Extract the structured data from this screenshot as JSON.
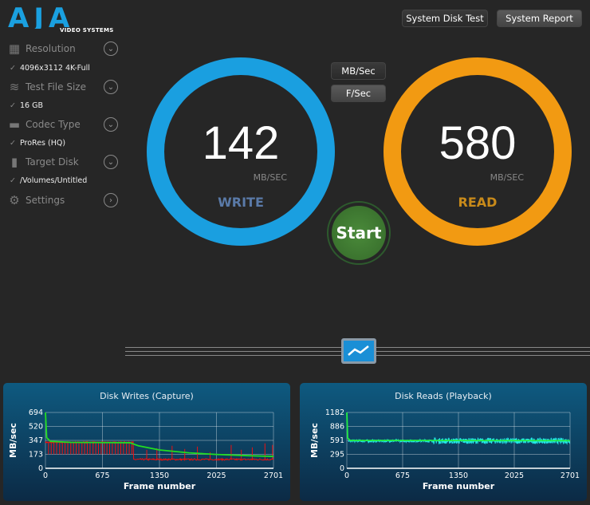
{
  "logo": {
    "text": "AJA",
    "sub": "VIDEO SYSTEMS",
    "color": "#1aa0e0"
  },
  "sidebar": {
    "items": [
      {
        "label": "Resolution",
        "value": "4096x3112 4K-Full",
        "icon": "chip-icon"
      },
      {
        "label": "Test File Size",
        "value": "16 GB",
        "icon": "stack-icon"
      },
      {
        "label": "Codec Type",
        "value": "ProRes (HQ)",
        "icon": "film-icon"
      },
      {
        "label": "Target Disk",
        "value": "/Volumes/Untitled",
        "icon": "disk-icon"
      },
      {
        "label": "Settings",
        "icon": "gear-icon"
      }
    ],
    "check": "✓"
  },
  "toolbar": {
    "system_disk_test": "System Disk Test",
    "system_report": "System Report"
  },
  "units": {
    "mbsec": "MB/Sec",
    "fsec": "F/Sec",
    "selected": "F/Sec"
  },
  "write": {
    "value": "142",
    "unit": "MB/SEC",
    "label": "WRITE",
    "color": "#1a9fe0"
  },
  "read": {
    "value": "580",
    "unit": "MB/SEC",
    "label": "READ",
    "color": "#f29a12"
  },
  "start_label": "Start",
  "chart_data": [
    {
      "type": "line",
      "title": "Disk Writes (Capture)",
      "xlabel": "Frame number",
      "ylabel": "MB/sec",
      "xticks": [
        "0",
        "675",
        "1350",
        "2025",
        "2701"
      ],
      "yticks": [
        "0",
        "173",
        "347",
        "520",
        "694"
      ],
      "xlim": [
        0,
        2701
      ],
      "ylim": [
        0,
        694
      ],
      "grid": true,
      "series": [
        {
          "color": "#22dd22",
          "points": [
            [
              0,
              694
            ],
            [
              15,
              380
            ],
            [
              60,
              335
            ],
            [
              300,
              322
            ],
            [
              1000,
              318
            ],
            [
              1100,
              280
            ],
            [
              1350,
              228
            ],
            [
              1700,
              192
            ],
            [
              2025,
              172
            ],
            [
              2400,
              157
            ],
            [
              2701,
              148
            ]
          ]
        },
        {
          "color": "#ee1111",
          "baseline": [
            [
              0,
              320
            ],
            [
              1040,
              320
            ],
            [
              1045,
              108
            ],
            [
              2701,
              108
            ]
          ],
          "dips_before": 173,
          "dip_interval": 33,
          "spikes_after": [
            [
              1200,
              230
            ],
            [
              1320,
              250
            ],
            [
              1500,
              280
            ],
            [
              1650,
              240
            ],
            [
              1800,
              270
            ],
            [
              1950,
              200
            ],
            [
              2200,
              290
            ],
            [
              2320,
              230
            ],
            [
              2450,
              260
            ],
            [
              2600,
              310
            ],
            [
              2690,
              290
            ]
          ]
        }
      ]
    },
    {
      "type": "line",
      "title": "Disk Reads (Playback)",
      "xlabel": "Frame number",
      "ylabel": "MB/sec",
      "xticks": [
        "0",
        "675",
        "1350",
        "2025",
        "2701"
      ],
      "yticks": [
        "0",
        "295",
        "591",
        "886",
        "1182"
      ],
      "xlim": [
        0,
        2701
      ],
      "ylim": [
        0,
        1182
      ],
      "grid": true,
      "series": [
        {
          "color": "#22ee44",
          "points": [
            [
              0,
              1182
            ],
            [
              10,
              640
            ],
            [
              40,
              590
            ],
            [
              2701,
              585
            ]
          ]
        },
        {
          "color": "#22e8e8",
          "mean": 580,
          "noise_before_1050": 25,
          "noise_after_1050": 60
        }
      ]
    }
  ]
}
